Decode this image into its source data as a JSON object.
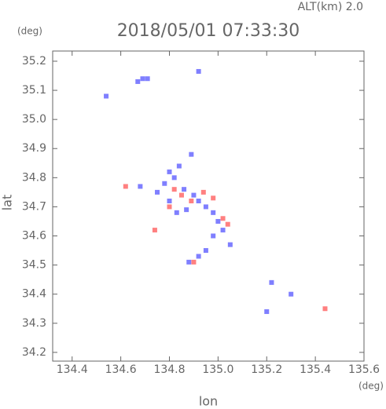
{
  "chart_data": {
    "type": "scatter",
    "title": "2018/05/01 07:33:30",
    "subtitle": "ALT(km) 2.0",
    "y_unit": "(deg)",
    "x_unit": "(deg)",
    "x_label": "lon",
    "y_label": "lat",
    "xlim": [
      134.32,
      135.6
    ],
    "ylim": [
      34.17,
      35.235
    ],
    "xticks": [
      134.4,
      134.6,
      134.8,
      {
        "value": 135.0,
        "label": "135.0"
      },
      135.2,
      135.4,
      135.6
    ],
    "yticks": [
      34.2,
      34.3,
      34.4,
      34.5,
      34.6,
      34.7,
      34.8,
      34.9,
      {
        "value": 35.0,
        "label": "35.0"
      },
      35.1,
      35.2
    ],
    "series": [
      {
        "color": "#7f7fff",
        "x": [
          134.54,
          134.69,
          134.71,
          134.67,
          134.92,
          134.89,
          134.84,
          134.8,
          134.82,
          134.78,
          134.68,
          134.75,
          134.86,
          134.9,
          134.92,
          134.95,
          134.98,
          134.87,
          135.0,
          135.02,
          134.98,
          134.95,
          134.92,
          134.88,
          135.05,
          135.3,
          135.2,
          135.22,
          134.83,
          134.8
        ],
        "values": [
          35.08,
          35.14,
          35.14,
          35.13,
          35.165,
          34.88,
          34.84,
          34.82,
          34.8,
          34.78,
          34.77,
          34.75,
          34.76,
          34.74,
          34.72,
          34.7,
          34.68,
          34.69,
          34.65,
          34.62,
          34.6,
          34.55,
          34.53,
          34.51,
          34.57,
          34.4,
          34.34,
          34.44,
          34.68,
          34.72
        ]
      },
      {
        "color": "#ff8080",
        "x": [
          134.62,
          134.82,
          134.85,
          134.89,
          134.94,
          135.02,
          135.04,
          134.74,
          134.9,
          135.44,
          134.8,
          134.98
        ],
        "values": [
          34.77,
          34.76,
          34.74,
          34.72,
          34.75,
          34.66,
          34.64,
          34.62,
          34.51,
          34.35,
          34.7,
          34.73
        ]
      }
    ]
  }
}
